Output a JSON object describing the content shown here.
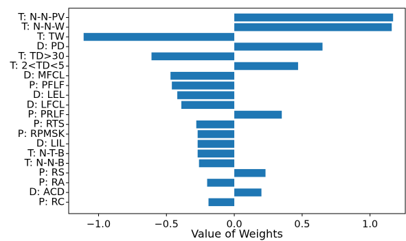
{
  "chart_data": {
    "type": "bar",
    "orientation": "horizontal",
    "xlabel": "Value of Weights",
    "ylabel": "",
    "title": "",
    "xlim": [
      -1.22,
      1.26
    ],
    "xticks": [
      -1.0,
      -0.5,
      0.0,
      0.5,
      1.0
    ],
    "xtick_labels": [
      "−1.0",
      "−0.5",
      "0.0",
      "0.5",
      "1.0"
    ],
    "grid": false,
    "bar_color": "#1f77b4",
    "categories": [
      "T: N-N-PV",
      "T: N-N-W",
      "T: TW",
      "D: PD",
      "T: TD>30",
      "T: 2<TD<5",
      "D: MFCL",
      "P: PFLF",
      "D: LEL",
      "D: LFCL",
      "P: PRLF",
      "P: RTS",
      "P: RPMSK",
      "D: LIL",
      "T: N-T-B",
      "T: N-N-B",
      "P: RS",
      "P: RA",
      "D: ACD",
      "P: RC"
    ],
    "values": [
      1.17,
      1.16,
      -1.11,
      0.65,
      -0.61,
      0.47,
      -0.47,
      -0.46,
      -0.42,
      -0.39,
      0.35,
      -0.28,
      -0.27,
      -0.27,
      -0.27,
      -0.26,
      0.23,
      -0.2,
      0.2,
      -0.19
    ]
  }
}
